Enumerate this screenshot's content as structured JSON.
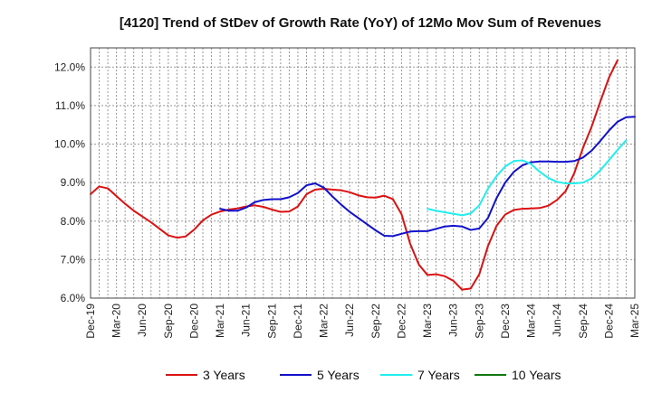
{
  "chart_data": {
    "type": "line",
    "title": "[4120]  Trend of StDev of Growth Rate (YoY) of 12Mo Mov Sum of Revenues",
    "xlabel": "",
    "ylabel": "",
    "ylim": [
      6.0,
      12.5
    ],
    "y_ticks": [
      6.0,
      7.0,
      8.0,
      9.0,
      10.0,
      11.0,
      12.0
    ],
    "y_tick_labels": [
      "6.0%",
      "7.0%",
      "8.0%",
      "9.0%",
      "10.0%",
      "11.0%",
      "12.0%"
    ],
    "x_ticks": [
      "Dec-19",
      "Mar-20",
      "Jun-20",
      "Sep-20",
      "Dec-20",
      "Mar-21",
      "Jun-21",
      "Sep-21",
      "Dec-21",
      "Mar-22",
      "Jun-22",
      "Sep-22",
      "Dec-22",
      "Mar-23",
      "Jun-23",
      "Sep-23",
      "Dec-23",
      "Mar-24",
      "Jun-24",
      "Sep-24",
      "Dec-24",
      "Mar-25"
    ],
    "x_start": "Dec-19",
    "grid": true,
    "legend_position": "bottom",
    "series": [
      {
        "name": "3 Years",
        "color": "#dd1111",
        "start_month_index": 0,
        "values": [
          8.7,
          8.9,
          8.85,
          8.65,
          8.45,
          8.27,
          8.12,
          7.97,
          7.8,
          7.63,
          7.57,
          7.6,
          7.78,
          8.02,
          8.17,
          8.25,
          8.3,
          8.33,
          8.38,
          8.41,
          8.37,
          8.3,
          8.24,
          8.25,
          8.38,
          8.7,
          8.82,
          8.84,
          8.82,
          8.8,
          8.75,
          8.67,
          8.62,
          8.61,
          8.66,
          8.57,
          8.18,
          7.41,
          6.87,
          6.6,
          6.62,
          6.57,
          6.45,
          6.22,
          6.25,
          6.62,
          7.35,
          7.88,
          8.17,
          8.29,
          8.32,
          8.33,
          8.34,
          8.4,
          8.55,
          8.78,
          9.25,
          9.9,
          10.45,
          11.1,
          11.72,
          12.18
        ]
      },
      {
        "name": "5 Years",
        "color": "#1111cc",
        "start_month_index": 15,
        "values": [
          8.32,
          8.27,
          8.27,
          8.35,
          8.49,
          8.55,
          8.57,
          8.57,
          8.62,
          8.73,
          8.93,
          8.98,
          8.87,
          8.64,
          8.43,
          8.24,
          8.08,
          7.92,
          7.76,
          7.62,
          7.61,
          7.67,
          7.73,
          7.74,
          7.74,
          7.8,
          7.86,
          7.88,
          7.86,
          7.77,
          7.81,
          8.08,
          8.6,
          9.0,
          9.28,
          9.45,
          9.53,
          9.55,
          9.55,
          9.54,
          9.54,
          9.56,
          9.65,
          9.83,
          10.08,
          10.35,
          10.58,
          10.7,
          10.71
        ]
      },
      {
        "name": "7 Years",
        "color": "#22eeee",
        "start_month_index": 39,
        "values": [
          8.32,
          8.27,
          8.23,
          8.19,
          8.15,
          8.2,
          8.41,
          8.84,
          9.17,
          9.42,
          9.56,
          9.58,
          9.48,
          9.28,
          9.12,
          9.02,
          8.98,
          8.98,
          9.0,
          9.11,
          9.32,
          9.58,
          9.85,
          10.1
        ]
      },
      {
        "name": "10 Years",
        "color": "#117711",
        "start_month_index": 0,
        "values": []
      }
    ]
  }
}
